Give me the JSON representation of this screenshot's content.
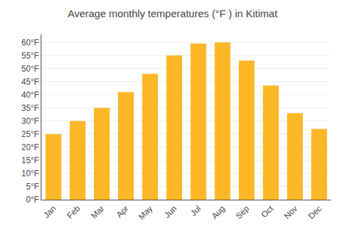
{
  "chart_data": {
    "type": "bar",
    "title": "Average monthly temperatures (°F ) in Kitimat",
    "categories": [
      "Jan",
      "Feb",
      "Mar",
      "Apr",
      "May",
      "Jun",
      "Jul",
      "Aug",
      "Sep",
      "Oct",
      "Nov",
      "Dec"
    ],
    "values": [
      25,
      30,
      35,
      41,
      48,
      55,
      59.5,
      60,
      53,
      43.5,
      33,
      27
    ],
    "color": "#FDB827",
    "ylim": [
      0,
      63
    ],
    "yticks": [
      {
        "value": 0,
        "label": "0°F"
      },
      {
        "value": 5,
        "label": "5°F"
      },
      {
        "value": 10,
        "label": "10°F"
      },
      {
        "value": 15,
        "label": "15°F"
      },
      {
        "value": 20,
        "label": "20°F"
      },
      {
        "value": 25,
        "label": "25°F"
      },
      {
        "value": 30,
        "label": "30°F"
      },
      {
        "value": 35,
        "label": "35°F"
      },
      {
        "value": 40,
        "label": "40°F"
      },
      {
        "value": 45,
        "label": "45°F"
      },
      {
        "value": 50,
        "label": "50°F"
      },
      {
        "value": 55,
        "label": "55°F"
      },
      {
        "value": 60,
        "label": "60°F"
      }
    ],
    "grid": true
  }
}
